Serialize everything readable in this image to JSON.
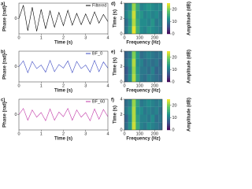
{
  "chart_data": [
    {
      "type": "line",
      "panel": "a)",
      "xlabel": "Time (s)",
      "ylabel": "Phase (rad)",
      "xlim": [
        0,
        4
      ],
      "xticks": [
        0,
        1,
        2,
        3,
        4
      ],
      "ylim": [
        -3,
        3
      ],
      "yticks": [
        0
      ],
      "legend": "upper right",
      "x": [
        0,
        0.2,
        0.4,
        0.6,
        0.8,
        1.0,
        1.2,
        1.4,
        1.6,
        1.8,
        2.0,
        2.2,
        2.4,
        2.6,
        2.8,
        3.0,
        3.2,
        3.4,
        3.6,
        3.8,
        4.0
      ],
      "series": [
        {
          "name": "Filtered",
          "color": "#000000",
          "values": [
            0,
            2.6,
            -2.4,
            2.2,
            -2.5,
            1.8,
            -2.0,
            1.5,
            -1.7,
            1.2,
            -1.4,
            1.6,
            -1.3,
            1.0,
            -1.2,
            0.9,
            -1.1,
            1.3,
            -0.9,
            0.8,
            -0.6
          ]
        }
      ]
    },
    {
      "type": "line",
      "panel": "b)",
      "xlabel": "Time (s)",
      "ylabel": "Phase (rad)",
      "xlim": [
        0,
        4
      ],
      "xticks": [
        0,
        1,
        2,
        3,
        4
      ],
      "ylim": [
        -3,
        3
      ],
      "yticks": [
        0
      ],
      "legend": "upper right",
      "x": [
        0,
        0.2,
        0.4,
        0.6,
        0.8,
        1.0,
        1.2,
        1.4,
        1.6,
        1.8,
        2.0,
        2.2,
        2.4,
        2.6,
        2.8,
        3.0,
        3.2,
        3.4,
        3.6,
        3.8,
        4.0
      ],
      "series": [
        {
          "name": "BF_0",
          "color": "#3a48c2",
          "values": [
            0,
            1.1,
            -1.2,
            1.0,
            -0.4,
            0.3,
            -1.1,
            1.2,
            -1.0,
            0.4,
            -0.3,
            1.1,
            -1.2,
            1.0,
            -0.4,
            0.3,
            -1.1,
            1.2,
            -1.0,
            0.9,
            -0.3
          ]
        }
      ]
    },
    {
      "type": "line",
      "panel": "c)",
      "xlabel": "Time (s)",
      "ylabel": "Phase (rad)",
      "xlim": [
        0,
        4
      ],
      "xticks": [
        0,
        1,
        2,
        3,
        4
      ],
      "ylim": [
        -3,
        3
      ],
      "yticks": [
        0
      ],
      "legend": "upper right",
      "x": [
        0,
        0.2,
        0.4,
        0.6,
        0.8,
        1.0,
        1.2,
        1.4,
        1.6,
        1.8,
        2.0,
        2.2,
        2.4,
        2.6,
        2.8,
        3.0,
        3.2,
        3.4,
        3.6,
        3.8,
        4.0
      ],
      "series": [
        {
          "name": "BF_60",
          "color": "#c23aa8",
          "values": [
            0,
            1.2,
            -1.1,
            0.9,
            -0.5,
            0.4,
            -1.2,
            1.1,
            -1.1,
            0.5,
            -0.4,
            1.2,
            -1.1,
            0.9,
            -0.5,
            0.4,
            -1.2,
            1.1,
            -0.9,
            1.0,
            -0.4
          ]
        }
      ]
    },
    {
      "type": "heatmap",
      "panel": "d)",
      "xlabel": "Frequency (Hz)",
      "ylabel": "Time (s)",
      "xlim": [
        0,
        250
      ],
      "xticks": [
        0,
        100,
        200
      ],
      "ylim": [
        0,
        4
      ],
      "yticks": [
        0,
        2,
        4
      ],
      "x": [
        12.5,
        37.5,
        62.5,
        87.5,
        112.5,
        137.5,
        162.5,
        187.5,
        212.5,
        237.5
      ],
      "y": [
        0.5,
        1.5,
        2.5,
        3.5
      ],
      "values": [
        [
          10,
          14,
          24,
          16,
          12,
          11,
          13,
          12,
          11,
          10
        ],
        [
          9,
          13,
          22,
          15,
          12,
          12,
          11,
          13,
          10,
          11
        ],
        [
          11,
          14,
          23,
          14,
          13,
          11,
          12,
          11,
          12,
          10
        ],
        [
          10,
          12,
          21,
          15,
          11,
          12,
          13,
          12,
          11,
          12
        ]
      ],
      "colorbar_label": "Amplitude (dB)",
      "clim": [
        0,
        25
      ],
      "cticks": [
        0,
        10,
        20
      ]
    },
    {
      "type": "heatmap",
      "panel": "e)",
      "xlabel": "Frequency (Hz)",
      "ylabel": "Time (s)",
      "xlim": [
        0,
        250
      ],
      "xticks": [
        0,
        100,
        200
      ],
      "ylim": [
        0,
        4
      ],
      "yticks": [
        0,
        2,
        4
      ],
      "x": [
        12.5,
        37.5,
        62.5,
        87.5,
        112.5,
        137.5,
        162.5,
        187.5,
        212.5,
        237.5
      ],
      "y": [
        0.5,
        1.5,
        2.5,
        3.5
      ],
      "values": [
        [
          8,
          12,
          22,
          14,
          10,
          9,
          11,
          10,
          9,
          8
        ],
        [
          7,
          11,
          21,
          13,
          10,
          10,
          9,
          11,
          8,
          9
        ],
        [
          9,
          12,
          22,
          12,
          11,
          9,
          10,
          9,
          10,
          8
        ],
        [
          8,
          10,
          20,
          13,
          9,
          10,
          11,
          10,
          9,
          10
        ]
      ],
      "colorbar_label": "Amplitude (dB)",
      "clim": [
        0,
        25
      ],
      "cticks": [
        0,
        10,
        20
      ]
    },
    {
      "type": "heatmap",
      "panel": "f)",
      "xlabel": "Frequency (Hz)",
      "ylabel": "Time (s)",
      "xlim": [
        0,
        250
      ],
      "xticks": [
        0,
        100,
        200
      ],
      "ylim": [
        0,
        4
      ],
      "yticks": [
        0,
        2,
        4
      ],
      "x": [
        12.5,
        37.5,
        62.5,
        87.5,
        112.5,
        137.5,
        162.5,
        187.5,
        212.5,
        237.5
      ],
      "y": [
        0.5,
        1.5,
        2.5,
        3.5
      ],
      "values": [
        [
          9,
          13,
          23,
          15,
          11,
          10,
          12,
          11,
          10,
          9
        ],
        [
          8,
          12,
          22,
          14,
          11,
          11,
          10,
          12,
          9,
          10
        ],
        [
          10,
          13,
          22,
          13,
          12,
          10,
          11,
          10,
          11,
          9
        ],
        [
          9,
          11,
          21,
          14,
          10,
          11,
          12,
          11,
          10,
          11
        ]
      ],
      "colorbar_label": "Amplitude (dB)",
      "clim": [
        0,
        25
      ],
      "cticks": [
        0,
        10,
        20
      ]
    }
  ]
}
